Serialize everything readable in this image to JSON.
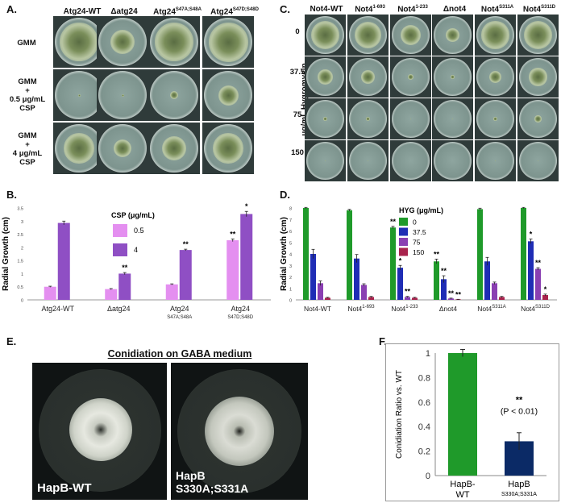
{
  "panels": {
    "A": {
      "letter": "A.",
      "columns": [
        {
          "main": "Atg24-WT",
          "sup": ""
        },
        {
          "main": "Δatg24",
          "sup": ""
        },
        {
          "main": "Atg24",
          "sup": "S47A;S48A"
        },
        {
          "main": "Atg24",
          "sup": "S47D;S48D"
        }
      ],
      "rows": [
        [
          "GMM"
        ],
        [
          "GMM",
          "+",
          "0.5 μg/mL",
          "CSP"
        ],
        [
          "GMM",
          "+",
          "4 μg/mL",
          "CSP"
        ]
      ]
    },
    "B": {
      "letter": "B."
    },
    "C": {
      "letter": "C.",
      "columns": [
        {
          "main": "Not4-WT",
          "sup": ""
        },
        {
          "main": "Not4",
          "sup": "1-693"
        },
        {
          "main": "Not4",
          "sup": "1-233"
        },
        {
          "main": "Δnot4",
          "sup": ""
        },
        {
          "main": "Not4",
          "sup": "S311A"
        },
        {
          "main": "Not4",
          "sup": "S311D"
        }
      ],
      "rows": [
        "0",
        "37.5",
        "75",
        "150"
      ],
      "axis_label": "μg/mL Hygromycin"
    },
    "D": {
      "letter": "D."
    },
    "E": {
      "letter": "E.",
      "title": "Conidiation on GABA medium",
      "photo_labels": [
        [
          "HapB-WT"
        ],
        [
          "HapB",
          "S330A;S331A"
        ]
      ]
    },
    "F": {
      "letter": "F."
    }
  },
  "chart_data": [
    {
      "id": "B",
      "type": "bar",
      "ylabel": "Radial Growth (cm)",
      "ylim": [
        0,
        3.5
      ],
      "yticks": [
        "0",
        "0.5",
        "1",
        "1.5",
        "2",
        "2.5",
        "3",
        "3.5"
      ],
      "legend_title": "CSP (μg/mL)",
      "categories": [
        {
          "main": "Atg24-WT",
          "sub": ""
        },
        {
          "main": "Δatg24",
          "sub": ""
        },
        {
          "main": "Atg24",
          "sub": "S47A;S48A"
        },
        {
          "main": "Atg24",
          "sub": "S47D;S48D"
        }
      ],
      "series": [
        {
          "name": "0.5",
          "color": "#e48ff0",
          "values": [
            0.5,
            0.41,
            0.59,
            2.27
          ],
          "errors": [
            0.02,
            0.02,
            0.02,
            0.05
          ],
          "stars": [
            "",
            "",
            "",
            "**"
          ]
        },
        {
          "name": "4",
          "color": "#8f4fc4",
          "values": [
            2.93,
            1.0,
            1.9,
            3.27
          ],
          "errors": [
            0.07,
            0.04,
            0.03,
            0.1
          ],
          "stars": [
            "",
            "**",
            "**",
            "*"
          ]
        }
      ]
    },
    {
      "id": "D",
      "type": "bar",
      "ylabel": "Radial Growth (cm)",
      "ylim": [
        0,
        8
      ],
      "yticks": [
        "0",
        "1",
        "2",
        "3",
        "4",
        "5",
        "6",
        "7",
        "8"
      ],
      "legend_title": "HYG (μg/mL)",
      "categories": [
        {
          "main": "Not4-WT",
          "sup": ""
        },
        {
          "main": "Not4",
          "sup": "1-693"
        },
        {
          "main": "Not4",
          "sup": "1-233"
        },
        {
          "main": "Δnot4",
          "sup": ""
        },
        {
          "main": "Not4",
          "sup": "S311A"
        },
        {
          "main": "Not4",
          "sup": "S311D"
        }
      ],
      "series": [
        {
          "name": "0",
          "color": "#1f9a2a",
          "values": [
            8.0,
            7.8,
            6.3,
            3.35,
            7.9,
            8.0
          ],
          "errors": [
            0.05,
            0.08,
            0.1,
            0.2,
            0.08,
            0.05
          ],
          "stars": [
            "",
            "",
            "**",
            "**",
            "",
            ""
          ]
        },
        {
          "name": "37.5",
          "color": "#1f2db5",
          "values": [
            4.0,
            3.6,
            2.8,
            1.8,
            3.35,
            5.1
          ],
          "errors": [
            0.4,
            0.35,
            0.2,
            0.3,
            0.35,
            0.2
          ],
          "stars": [
            "",
            "",
            "*",
            "**",
            "",
            "*"
          ]
        },
        {
          "name": "75",
          "color": "#8a3fb2",
          "values": [
            1.45,
            1.3,
            0.25,
            0.12,
            1.45,
            2.7
          ],
          "errors": [
            0.2,
            0.1,
            0.05,
            0.03,
            0.1,
            0.1
          ],
          "stars": [
            "",
            "",
            "**",
            "**",
            "",
            "**"
          ]
        },
        {
          "name": "150",
          "color": "#a8234d",
          "values": [
            0.18,
            0.25,
            0.18,
            0.04,
            0.25,
            0.42
          ],
          "errors": [
            0.04,
            0.05,
            0.04,
            0.01,
            0.05,
            0.08
          ],
          "stars": [
            "",
            "",
            "",
            "**",
            "",
            "*"
          ]
        }
      ]
    },
    {
      "id": "F",
      "type": "bar",
      "ylabel": "Conidiation Ratio vs. WT",
      "ylim": [
        0,
        1
      ],
      "yticks": [
        "0",
        "0.2",
        "0.4",
        "0.6",
        "0.8",
        "1"
      ],
      "categories": [
        {
          "main": "HapB-",
          "sub": "WT"
        },
        {
          "main": "HapB",
          "sub": "S330A;S331A"
        }
      ],
      "values": [
        1.0,
        0.28
      ],
      "errors": [
        0.03,
        0.07
      ],
      "colors": [
        "#1f9a2a",
        "#0b2a66"
      ],
      "annotation": {
        "stars": "**",
        "p": "(P < 0.01)"
      }
    }
  ]
}
